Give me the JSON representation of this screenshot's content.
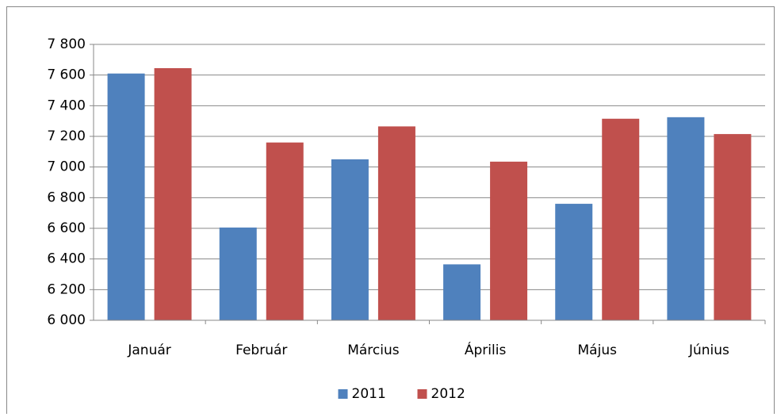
{
  "chart_data": {
    "type": "bar",
    "categories": [
      "Január",
      "Február",
      "Március",
      "Április",
      "Május",
      "Június"
    ],
    "series": [
      {
        "name": "2011",
        "color": "#4f81bd",
        "values": [
          7610,
          6605,
          7050,
          6365,
          6760,
          7325
        ]
      },
      {
        "name": "2012",
        "color": "#c0504d",
        "values": [
          7645,
          7160,
          7265,
          7035,
          7315,
          7215
        ]
      }
    ],
    "ylim": [
      6000,
      7800
    ],
    "yticks": [
      {
        "value": 6000,
        "label": "6 000"
      },
      {
        "value": 6200,
        "label": "6 200"
      },
      {
        "value": 6400,
        "label": "6 400"
      },
      {
        "value": 6600,
        "label": "6 600"
      },
      {
        "value": 6800,
        "label": "6 800"
      },
      {
        "value": 7000,
        "label": "7 000"
      },
      {
        "value": 7200,
        "label": "7 200"
      },
      {
        "value": 7400,
        "label": "7 400"
      },
      {
        "value": 7600,
        "label": "7 600"
      },
      {
        "value": 7800,
        "label": "7 800"
      }
    ],
    "grid": true,
    "legend": "bottom"
  }
}
